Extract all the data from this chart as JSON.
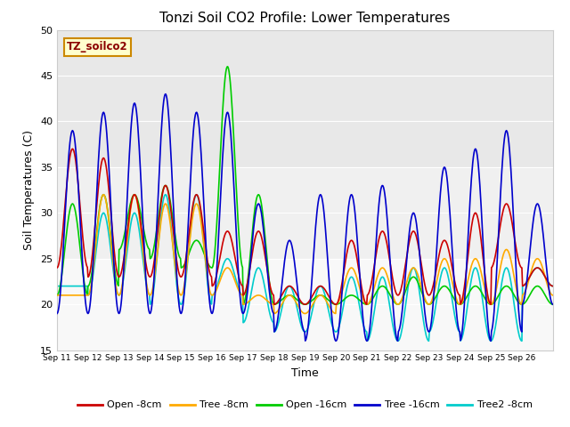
{
  "title": "Tonzi Soil CO2 Profile: Lower Temperatures",
  "xlabel": "Time",
  "ylabel": "Soil Temperatures (C)",
  "ylim": [
    15,
    50
  ],
  "yticks": [
    15,
    20,
    25,
    30,
    35,
    40,
    45,
    50
  ],
  "source_label": "TZ_soilco2",
  "series": [
    {
      "label": "Open -8cm",
      "color": "#cc0000"
    },
    {
      "label": "Tree -8cm",
      "color": "#ffaa00"
    },
    {
      "label": "Open -16cm",
      "color": "#00cc00"
    },
    {
      "label": "Tree -16cm",
      "color": "#0000cc"
    },
    {
      "label": "Tree2 -8cm",
      "color": "#00cccc"
    }
  ],
  "x_tick_labels": [
    "Sep 11",
    "Sep 12",
    "Sep 13",
    "Sep 14",
    "Sep 15",
    "Sep 16",
    "Sep 17",
    "Sep 18",
    "Sep 19",
    "Sep 20",
    "Sep 21",
    "Sep 22",
    "Sep 23",
    "Sep 24",
    "Sep 25",
    "Sep 26"
  ],
  "n_days": 16,
  "pts_per_day": 48,
  "open8_peaks": [
    37,
    36,
    32,
    33,
    32,
    28,
    28,
    22,
    22,
    27,
    28,
    28,
    27,
    30,
    31,
    24
  ],
  "open8_troughs": [
    24,
    23,
    23,
    23,
    23,
    22,
    21,
    20,
    20,
    20,
    21,
    21,
    21,
    20,
    24,
    22
  ],
  "tree8_peaks": [
    21,
    32,
    32,
    31,
    31,
    24,
    21,
    21,
    21,
    24,
    24,
    24,
    25,
    25,
    26,
    25
  ],
  "tree8_troughs": [
    21,
    21,
    21,
    21,
    21,
    21,
    20,
    19,
    19,
    20,
    20,
    20,
    20,
    20,
    20,
    21
  ],
  "open16_peaks": [
    31,
    32,
    32,
    33,
    27,
    46,
    32,
    21,
    21,
    21,
    22,
    23,
    22,
    22,
    22,
    22
  ],
  "open16_troughs": [
    21,
    22,
    26,
    25,
    24,
    24,
    20,
    20,
    20,
    20,
    20,
    20,
    20,
    20,
    20,
    20
  ],
  "tree16_peaks": [
    39,
    41,
    42,
    43,
    41,
    41,
    31,
    27,
    32,
    32,
    33,
    30,
    35,
    37,
    39,
    31
  ],
  "tree16_troughs": [
    19,
    19,
    19,
    19,
    19,
    19,
    19,
    17,
    16,
    16,
    16,
    17,
    17,
    16,
    17,
    20
  ],
  "tree28_peaks": [
    22,
    30,
    30,
    32,
    32,
    25,
    24,
    22,
    22,
    23,
    23,
    24,
    24,
    24,
    24,
    24
  ],
  "tree28_troughs": [
    22,
    21,
    21,
    20,
    20,
    21,
    18,
    17,
    17,
    17,
    16,
    16,
    17,
    16,
    16,
    22
  ]
}
